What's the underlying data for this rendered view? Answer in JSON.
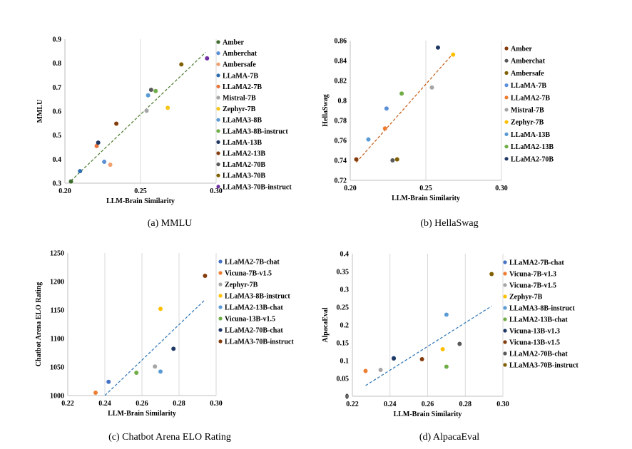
{
  "chart_data": [
    {
      "type": "scatter",
      "caption": "(a)  MMLU",
      "xlabel": "LLM-Brain Similarity",
      "ylabel": "MMLU",
      "xlim": [
        0.2,
        0.3
      ],
      "ylim": [
        0.3,
        0.9
      ],
      "xticks": [
        "0.20",
        "0.25",
        "0.30"
      ],
      "yticks": [
        "0.3",
        "0.4",
        "0.5",
        "0.6",
        "0.7",
        "0.8",
        "0.9"
      ],
      "trendline": {
        "x": [
          0.204,
          0.293
        ],
        "y": [
          0.31,
          0.845
        ],
        "color": "#4a7a2e"
      },
      "series": [
        {
          "name": "Amber",
          "color": "#3f6b2c",
          "x": 0.204,
          "y": 0.307
        },
        {
          "name": "Amberchat",
          "color": "#5b8fd6",
          "x": 0.226,
          "y": 0.389
        },
        {
          "name": "Ambersafe",
          "color": "#f0a070",
          "x": 0.23,
          "y": 0.377
        },
        {
          "name": "LLaMA-7B",
          "color": "#2f6db3",
          "x": 0.21,
          "y": 0.35
        },
        {
          "name": "LLaMA2-7B",
          "color": "#e8763a",
          "x": 0.221,
          "y": 0.455
        },
        {
          "name": "Mistral-7B",
          "color": "#a5a5a5",
          "x": 0.254,
          "y": 0.602
        },
        {
          "name": "Zephyr-7B",
          "color": "#f5c518",
          "x": 0.268,
          "y": 0.614
        },
        {
          "name": "LLaMA3-8B",
          "color": "#5b9bd5",
          "x": 0.255,
          "y": 0.666
        },
        {
          "name": "LLaMA3-8B-instruct",
          "color": "#70ad47",
          "x": 0.26,
          "y": 0.684
        },
        {
          "name": "LLaMA-13B",
          "color": "#1f3864",
          "x": 0.222,
          "y": 0.469
        },
        {
          "name": "LLaMA2-13B",
          "color": "#843c0c",
          "x": 0.234,
          "y": 0.548
        },
        {
          "name": "LLaMA2-70B",
          "color": "#595959",
          "x": 0.257,
          "y": 0.689
        },
        {
          "name": "LLaMA3-70B",
          "color": "#806000",
          "x": 0.277,
          "y": 0.795
        },
        {
          "name": "LLaMA3-70B-instruct",
          "color": "#7030a0",
          "x": 0.294,
          "y": 0.82
        }
      ]
    },
    {
      "type": "scatter",
      "caption": "(b)  HellaSwag",
      "xlabel": "LLM-Brain Similarity",
      "ylabel": "HellaSwag",
      "xlim": [
        0.2,
        0.3
      ],
      "ylim": [
        0.72,
        0.86
      ],
      "xticks": [
        "0.20",
        "0.25",
        "0.30"
      ],
      "yticks": [
        "0.72",
        "0.74",
        "0.76",
        "0.78",
        "0.8",
        "0.82",
        "0.84",
        "0.86"
      ],
      "trendline": {
        "x": [
          0.204,
          0.268
        ],
        "y": [
          0.738,
          0.847
        ],
        "color": "#c55a11"
      },
      "series": [
        {
          "name": "Amber",
          "color": "#843c0c",
          "x": 0.204,
          "y": 0.741
        },
        {
          "name": "Amberchat",
          "color": "#595959",
          "x": 0.228,
          "y": 0.74
        },
        {
          "name": "Ambersafe",
          "color": "#806000",
          "x": 0.231,
          "y": 0.741
        },
        {
          "name": "LLaMA-7B",
          "color": "#5b8fd6",
          "x": 0.224,
          "y": 0.792
        },
        {
          "name": "LLaMA2-7B",
          "color": "#ed7d31",
          "x": 0.223,
          "y": 0.772
        },
        {
          "name": "Mistral-7B",
          "color": "#a5a5a5",
          "x": 0.254,
          "y": 0.813
        },
        {
          "name": "Zephyr-7B",
          "color": "#ffc000",
          "x": 0.268,
          "y": 0.846
        },
        {
          "name": "LLaMA-13B",
          "color": "#5b9bd5",
          "x": 0.212,
          "y": 0.761
        },
        {
          "name": "LLaMA2-13B",
          "color": "#70ad47",
          "x": 0.234,
          "y": 0.807
        },
        {
          "name": "LLaMA2-70B",
          "color": "#1f3864",
          "x": 0.258,
          "y": 0.853
        }
      ]
    },
    {
      "type": "scatter",
      "caption": "(c)  Chatbot Arena ELO Rating",
      "xlabel": "LLM-Brain Similarity",
      "ylabel": "Chatbot Arena ELO Rating",
      "xlim": [
        0.22,
        0.3
      ],
      "ylim": [
        1000,
        1250
      ],
      "xticks": [
        "0.22",
        "0.24",
        "0.26",
        "0.28",
        "0.30"
      ],
      "yticks": [
        "1000",
        "1050",
        "1100",
        "1150",
        "1200",
        "1250"
      ],
      "trendline": {
        "x": [
          0.24,
          0.294
        ],
        "y": [
          1000,
          1168
        ],
        "color": "#2e75b6"
      },
      "series": [
        {
          "name": "LLaMA2-7B-chat",
          "color": "#4472c4",
          "x": 0.242,
          "y": 1024
        },
        {
          "name": "Vicuna-7B-v1.5",
          "color": "#ed7d31",
          "x": 0.235,
          "y": 1005
        },
        {
          "name": "Zephyr-7B",
          "color": "#a5a5a5",
          "x": 0.267,
          "y": 1051
        },
        {
          "name": "LLaMA3-8B-instruct",
          "color": "#ffc000",
          "x": 0.27,
          "y": 1152
        },
        {
          "name": "LLaMA2-13B-chat",
          "color": "#5b9bd5",
          "x": 0.27,
          "y": 1042
        },
        {
          "name": "Vicuna-13B-v1.5",
          "color": "#70ad47",
          "x": 0.257,
          "y": 1040
        },
        {
          "name": "LLaMA2-70B-chat",
          "color": "#1f3864",
          "x": 0.277,
          "y": 1082
        },
        {
          "name": "LLaMA3-70B-instruct",
          "color": "#843c0c",
          "x": 0.294,
          "y": 1210
        }
      ]
    },
    {
      "type": "scatter",
      "caption": "(d)  AlpacaEval",
      "xlabel": "LLM-Brain Similarity",
      "ylabel": "AlpacaEval",
      "xlim": [
        0.22,
        0.3
      ],
      "ylim": [
        0,
        0.4
      ],
      "xticks": [
        "0.22",
        "0.24",
        "0.26",
        "0.28",
        "0.30"
      ],
      "yticks": [
        "0",
        "0.05",
        "0.1",
        "0.15",
        "0.2",
        "0.25",
        "0.3",
        "0.35",
        "0.4"
      ],
      "trendline": {
        "x": [
          0.227,
          0.294
        ],
        "y": [
          0.03,
          0.253
        ],
        "color": "#2e75b6"
      },
      "series": [
        {
          "name": "LLaMA2-7B-chat",
          "color": "#4472c4",
          "x": 0.242,
          "y": 0.107
        },
        {
          "name": "Vicuna-7B-v1.3",
          "color": "#ed7d31",
          "x": 0.227,
          "y": 0.071
        },
        {
          "name": "Vicuna-7B-v1.5",
          "color": "#a5a5a5",
          "x": 0.235,
          "y": 0.074
        },
        {
          "name": "Zephyr-7B",
          "color": "#ffc000",
          "x": 0.268,
          "y": 0.132
        },
        {
          "name": "LLaMA3-8B-instruct",
          "color": "#5b9bd5",
          "x": 0.27,
          "y": 0.229
        },
        {
          "name": "LLaMA2-13B-chat",
          "color": "#70ad47",
          "x": 0.27,
          "y": 0.083
        },
        {
          "name": "Vicuna-13B-v1.3",
          "color": "#1f3864",
          "x": 0.242,
          "y": 0.106
        },
        {
          "name": "Vicuna-13B-v1.5",
          "color": "#843c0c",
          "x": 0.257,
          "y": 0.104
        },
        {
          "name": "LLaMA2-70B-chat",
          "color": "#595959",
          "x": 0.277,
          "y": 0.147
        },
        {
          "name": "LLaMA3-70B-instruct",
          "color": "#806000",
          "x": 0.294,
          "y": 0.343
        }
      ]
    }
  ]
}
